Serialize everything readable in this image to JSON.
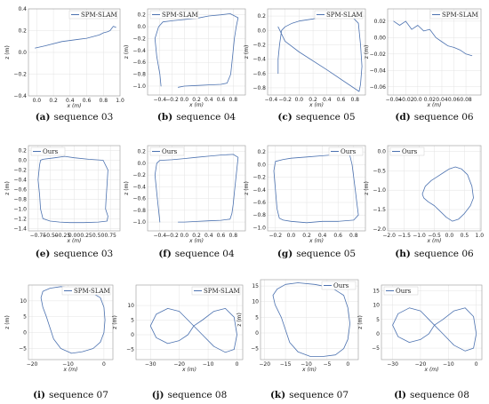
{
  "series_color": "#4c72b0",
  "chart_data": [
    {
      "id": "a",
      "type": "line",
      "tag": "(a)",
      "caption": "sequence 03",
      "legend": "SPM-SLAM",
      "xlabel": "x (m)",
      "ylabel": "z (m)",
      "xlim": [
        -0.1,
        1.0
      ],
      "ylim": [
        -0.4,
        0.4
      ],
      "xticks": [
        "0.0",
        "0.2",
        "0.4",
        "0.6",
        "0.8",
        "1.0"
      ],
      "yticks": [
        "0.4",
        "0.2",
        "0.0",
        "−0.2",
        "−0.4"
      ],
      "grid": true,
      "legend_position": "top-right",
      "x": [
        -0.02,
        0.1,
        0.3,
        0.5,
        0.6,
        0.7,
        0.75,
        0.8,
        0.85,
        0.88,
        0.9,
        0.92,
        0.95
      ],
      "y": [
        0.04,
        0.06,
        0.1,
        0.12,
        0.13,
        0.15,
        0.16,
        0.18,
        0.19,
        0.2,
        0.22,
        0.24,
        0.23
      ]
    },
    {
      "id": "b",
      "type": "line",
      "tag": "(b)",
      "caption": "sequence 04",
      "legend": "SPM-SLAM",
      "xlabel": "x (m)",
      "ylabel": "z (m)",
      "xlim": [
        -0.6,
        1.0
      ],
      "ylim": [
        -1.15,
        0.3
      ],
      "xticks": [
        "−0.4",
        "−0.2",
        "0.0",
        "0.2",
        "0.4",
        "0.6",
        "0.8"
      ],
      "yticks": [
        "0.2",
        "0.0",
        "−0.2",
        "−0.4",
        "−0.6",
        "−0.8",
        "−1.0"
      ],
      "grid": true,
      "legend_position": "top-left",
      "x": [
        -0.38,
        -0.4,
        -0.45,
        -0.48,
        -0.42,
        -0.35,
        -0.2,
        0.0,
        0.2,
        0.4,
        0.6,
        0.75,
        0.88,
        0.85,
        0.82,
        0.8,
        0.78,
        0.76,
        0.7,
        0.6,
        0.4,
        0.2,
        0.0,
        -0.1
      ],
      "y": [
        -1.0,
        -0.8,
        -0.5,
        -0.2,
        0.0,
        0.08,
        0.1,
        0.12,
        0.14,
        0.18,
        0.2,
        0.22,
        0.15,
        0.0,
        -0.2,
        -0.4,
        -0.6,
        -0.8,
        -0.95,
        -0.97,
        -0.98,
        -0.99,
        -1.0,
        -1.02
      ]
    },
    {
      "id": "c",
      "type": "line",
      "tag": "(c)",
      "caption": "sequence 05",
      "legend": "SPM-SLAM",
      "xlabel": "x (m)",
      "ylabel": "z (m)",
      "xlim": [
        -0.45,
        0.95
      ],
      "ylim": [
        -0.9,
        0.3
      ],
      "xticks": [
        "−0.4",
        "−0.2",
        "0.0",
        "0.2",
        "0.4",
        "0.6",
        "0.8"
      ],
      "yticks": [
        "0.2",
        "0.0",
        "−0.2",
        "−0.4",
        "−0.6",
        "−0.8"
      ],
      "grid": true,
      "legend_position": "top-right",
      "x": [
        -0.3,
        -0.3,
        -0.28,
        -0.25,
        -0.2,
        -0.1,
        0.0,
        0.2,
        0.4,
        0.6,
        0.75,
        0.85,
        0.88,
        0.9,
        0.88,
        0.86,
        0.4,
        0.0,
        -0.2,
        -0.3
      ],
      "y": [
        -0.6,
        -0.4,
        -0.2,
        0.0,
        0.05,
        0.1,
        0.13,
        0.16,
        0.2,
        0.22,
        0.2,
        0.1,
        -0.2,
        -0.5,
        -0.75,
        -0.85,
        -0.55,
        -0.3,
        -0.15,
        0.05
      ]
    },
    {
      "id": "d",
      "type": "line",
      "tag": "(d)",
      "caption": "sequence 06",
      "legend": "SPM-SLAM",
      "xlabel": "x (m)",
      "ylabel": "z (m)",
      "xlim": [
        -0.05,
        0.105
      ],
      "ylim": [
        -0.07,
        0.035
      ],
      "xticks": [
        "−0.04",
        "−0.02",
        "0.0",
        "0.02",
        "0.04",
        "0.06",
        "0.08"
      ],
      "yticks": [
        "0.02",
        "0.00",
        "−0.02",
        "−0.04",
        "−0.06"
      ],
      "grid": true,
      "legend_position": "top-right",
      "x": [
        -0.04,
        -0.03,
        -0.02,
        -0.01,
        0.0,
        0.01,
        0.02,
        0.03,
        0.04,
        0.05,
        0.06,
        0.07,
        0.08,
        0.09
      ],
      "y": [
        0.02,
        0.015,
        0.02,
        0.01,
        0.015,
        0.008,
        0.01,
        0.0,
        -0.005,
        -0.01,
        -0.012,
        -0.015,
        -0.02,
        -0.022
      ]
    },
    {
      "id": "e",
      "type": "line",
      "tag": "(e)",
      "caption": "sequence 03",
      "legend": "Ours",
      "xlabel": "x (m)",
      "ylabel": "z (m)",
      "xlim": [
        -0.95,
        0.95
      ],
      "ylim": [
        -1.45,
        0.3
      ],
      "xticks": [
        "−0.75",
        "−0.50",
        "−0.25",
        "0.00",
        "0.25",
        "0.50",
        "0.75"
      ],
      "yticks": [
        "0.2",
        "0.0",
        "−0.2",
        "−0.4",
        "−0.6",
        "−0.8",
        "−1.0",
        "−1.2",
        "−1.4"
      ],
      "grid": true,
      "legend_position": "top-left",
      "x": [
        -0.65,
        -0.7,
        -0.72,
        -0.75,
        -0.72,
        -0.7,
        -0.65,
        -0.4,
        -0.2,
        0.0,
        0.3,
        0.6,
        0.7,
        0.68,
        0.66,
        0.65,
        0.7,
        0.68,
        0.5,
        0.2,
        -0.1,
        -0.3,
        -0.5,
        -0.65
      ],
      "y": [
        -1.2,
        -1.0,
        -0.7,
        -0.4,
        -0.1,
        0.0,
        0.02,
        0.05,
        0.08,
        0.05,
        0.02,
        0.0,
        -0.2,
        -0.5,
        -0.8,
        -1.0,
        -1.15,
        -1.25,
        -1.27,
        -1.28,
        -1.28,
        -1.27,
        -1.25,
        -1.2
      ]
    },
    {
      "id": "f",
      "type": "line",
      "tag": "(f)",
      "caption": "sequence 04",
      "legend": "Ours",
      "xlabel": "x (m)",
      "ylabel": "z (m)",
      "xlim": [
        -0.6,
        1.0
      ],
      "ylim": [
        -1.15,
        0.3
      ],
      "xticks": [
        "−0.4",
        "−0.2",
        "0.0",
        "0.2",
        "0.4",
        "0.6",
        "0.8"
      ],
      "yticks": [
        "0.2",
        "0.0",
        "−0.2",
        "−0.4",
        "−0.6",
        "−0.8",
        "−1.0"
      ],
      "grid": true,
      "legend_position": "top-left",
      "x": [
        -0.4,
        -0.42,
        -0.45,
        -0.48,
        -0.45,
        -0.4,
        -0.2,
        0.0,
        0.2,
        0.4,
        0.6,
        0.8,
        0.88,
        0.86,
        0.84,
        0.82,
        0.8,
        0.78,
        0.75,
        0.6,
        0.4,
        0.2,
        0.0,
        -0.1
      ],
      "y": [
        -1.0,
        -0.8,
        -0.5,
        -0.2,
        0.0,
        0.05,
        0.06,
        0.08,
        0.1,
        0.12,
        0.14,
        0.15,
        0.1,
        -0.1,
        -0.3,
        -0.5,
        -0.7,
        -0.85,
        -0.95,
        -0.97,
        -0.98,
        -0.99,
        -1.0,
        -1.0
      ]
    },
    {
      "id": "g",
      "type": "line",
      "tag": "(g)",
      "caption": "sequence 05",
      "legend": "Ours",
      "xlabel": "x (m)",
      "ylabel": "z (m)",
      "xlim": [
        -0.3,
        0.95
      ],
      "ylim": [
        -1.05,
        0.3
      ],
      "xticks": [
        "−0.2",
        "0.0",
        "0.2",
        "0.4",
        "0.6",
        "0.8"
      ],
      "yticks": [
        "0.2",
        "0.0",
        "−0.2",
        "−0.4",
        "−0.6",
        "−0.8",
        "−1.0"
      ],
      "grid": true,
      "legend_position": "top-right",
      "x": [
        -0.15,
        -0.18,
        -0.2,
        -0.22,
        -0.2,
        -0.1,
        0.0,
        0.2,
        0.4,
        0.6,
        0.75,
        0.78,
        0.8,
        0.82,
        0.84,
        0.86,
        0.8,
        0.6,
        0.4,
        0.2,
        0.0,
        -0.1,
        -0.15
      ],
      "y": [
        -0.85,
        -0.7,
        -0.4,
        -0.1,
        0.05,
        0.08,
        0.1,
        0.12,
        0.14,
        0.16,
        0.15,
        0.0,
        -0.2,
        -0.4,
        -0.6,
        -0.8,
        -0.88,
        -0.9,
        -0.9,
        -0.92,
        -0.9,
        -0.88,
        -0.85
      ]
    },
    {
      "id": "h",
      "type": "line",
      "tag": "(h)",
      "caption": "sequence 06",
      "legend": "Ours",
      "xlabel": "x (m)",
      "ylabel": "z (m)",
      "xlim": [
        -2.05,
        1.05
      ],
      "ylim": [
        -2.05,
        0.15
      ],
      "xticks": [
        "−2.0",
        "−1.5",
        "−1.0",
        "−0.5",
        "0.0",
        "0.5",
        "1.0"
      ],
      "yticks": [
        "0.0",
        "−0.5",
        "−1.0",
        "−1.5",
        "−2.0"
      ],
      "grid": true,
      "legend_position": "top-left",
      "x": [
        -0.9,
        -0.8,
        -0.6,
        -0.4,
        -0.2,
        0.0,
        0.2,
        0.4,
        0.6,
        0.75,
        0.8,
        0.7,
        0.5,
        0.3,
        0.1,
        -0.1,
        -0.3,
        -0.5,
        -0.7,
        -0.85,
        -0.9
      ],
      "y": [
        -1.1,
        -0.9,
        -0.75,
        -0.65,
        -0.55,
        -0.45,
        -0.4,
        -0.45,
        -0.6,
        -0.9,
        -1.2,
        -1.4,
        -1.6,
        -1.75,
        -1.8,
        -1.7,
        -1.55,
        -1.4,
        -1.3,
        -1.2,
        -1.1
      ]
    },
    {
      "id": "i",
      "type": "line",
      "tag": "(i)",
      "caption": "sequence 07",
      "legend": "SPM-SLAM",
      "xlabel": "x (m)",
      "ylabel": "z (m)",
      "xlim": [
        -21,
        2.5
      ],
      "ylim": [
        -8.5,
        15
      ],
      "xticks": [
        "−20",
        "−10",
        "0"
      ],
      "yticks": [
        "10",
        "5",
        "0",
        "−5"
      ],
      "grid": true,
      "legend_position": "top-right",
      "x": [
        -16,
        -17,
        -17.5,
        -17,
        -15,
        -12,
        -8,
        -4,
        -1,
        0,
        0.3,
        0,
        -1,
        -3,
        -6,
        -9,
        -12,
        -14,
        -16
      ],
      "y": [
        5,
        8,
        11,
        13,
        14,
        14.5,
        14,
        13,
        11,
        8,
        4,
        0,
        -3,
        -5,
        -6,
        -6.5,
        -5,
        -2,
        5
      ]
    },
    {
      "id": "j",
      "type": "line",
      "tag": "(j)",
      "caption": "sequence 08",
      "legend": "SPM-SLAM",
      "xlabel": "x (m)",
      "ylabel": "z (m)",
      "xlim": [
        -35,
        2
      ],
      "ylim": [
        -8.5,
        17
      ],
      "xticks": [
        "−30",
        "−20",
        "−10",
        "0"
      ],
      "yticks": [
        "10",
        "5",
        "0",
        "−5"
      ],
      "grid": true,
      "legend_position": "top-right",
      "x": [
        -30,
        -28,
        -24,
        -20,
        -17,
        -15,
        -12,
        -8,
        -4,
        -1,
        0,
        -1,
        -4,
        -8,
        -12,
        -15,
        -17,
        -20,
        -24,
        -28,
        -30
      ],
      "y": [
        3,
        7,
        9,
        8,
        5,
        3,
        0,
        -4,
        -6,
        -5,
        0,
        6,
        9,
        8,
        5,
        3,
        0,
        -2,
        -3,
        -1,
        3
      ]
    },
    {
      "id": "k",
      "type": "line",
      "tag": "(k)",
      "caption": "sequence 07",
      "legend": "Ours",
      "xlabel": "x (m)",
      "ylabel": "z (m)",
      "xlim": [
        -21,
        2.5
      ],
      "ylim": [
        -8.5,
        17
      ],
      "xticks": [
        "−20",
        "−15",
        "−10",
        "−5",
        "0"
      ],
      "yticks": [
        "15",
        "10",
        "5",
        "0",
        "−5"
      ],
      "grid": true,
      "legend_position": "top-right",
      "x": [
        -16,
        -17.5,
        -18,
        -17,
        -15,
        -12,
        -8,
        -4,
        -1,
        0,
        0.5,
        0,
        -1,
        -3,
        -6,
        -9,
        -12,
        -14,
        -16
      ],
      "y": [
        5,
        9,
        12,
        14,
        15.5,
        16,
        15.5,
        14.5,
        12,
        8,
        3,
        -2,
        -5,
        -7,
        -7.5,
        -7.5,
        -6,
        -3,
        5
      ]
    },
    {
      "id": "l",
      "type": "line",
      "tag": "(l)",
      "caption": "sequence 08",
      "legend": "Ours",
      "xlabel": "x (m)",
      "ylabel": "z (m)",
      "xlim": [
        -34,
        2
      ],
      "ylim": [
        -9,
        17
      ],
      "xticks": [
        "−30",
        "−20",
        "−10",
        "0"
      ],
      "yticks": [
        "15",
        "10",
        "5",
        "0",
        "−5"
      ],
      "grid": true,
      "legend_position": "top-left",
      "x": [
        -30,
        -28,
        -24,
        -20,
        -17,
        -15,
        -12,
        -8,
        -4,
        -1,
        0,
        -1,
        -4,
        -8,
        -12,
        -15,
        -17,
        -20,
        -24,
        -28,
        -30
      ],
      "y": [
        3,
        7,
        9,
        8,
        5,
        3,
        0,
        -4,
        -6,
        -5,
        0,
        6,
        9,
        8,
        5,
        3,
        0,
        -2,
        -3,
        -1,
        3
      ]
    }
  ]
}
